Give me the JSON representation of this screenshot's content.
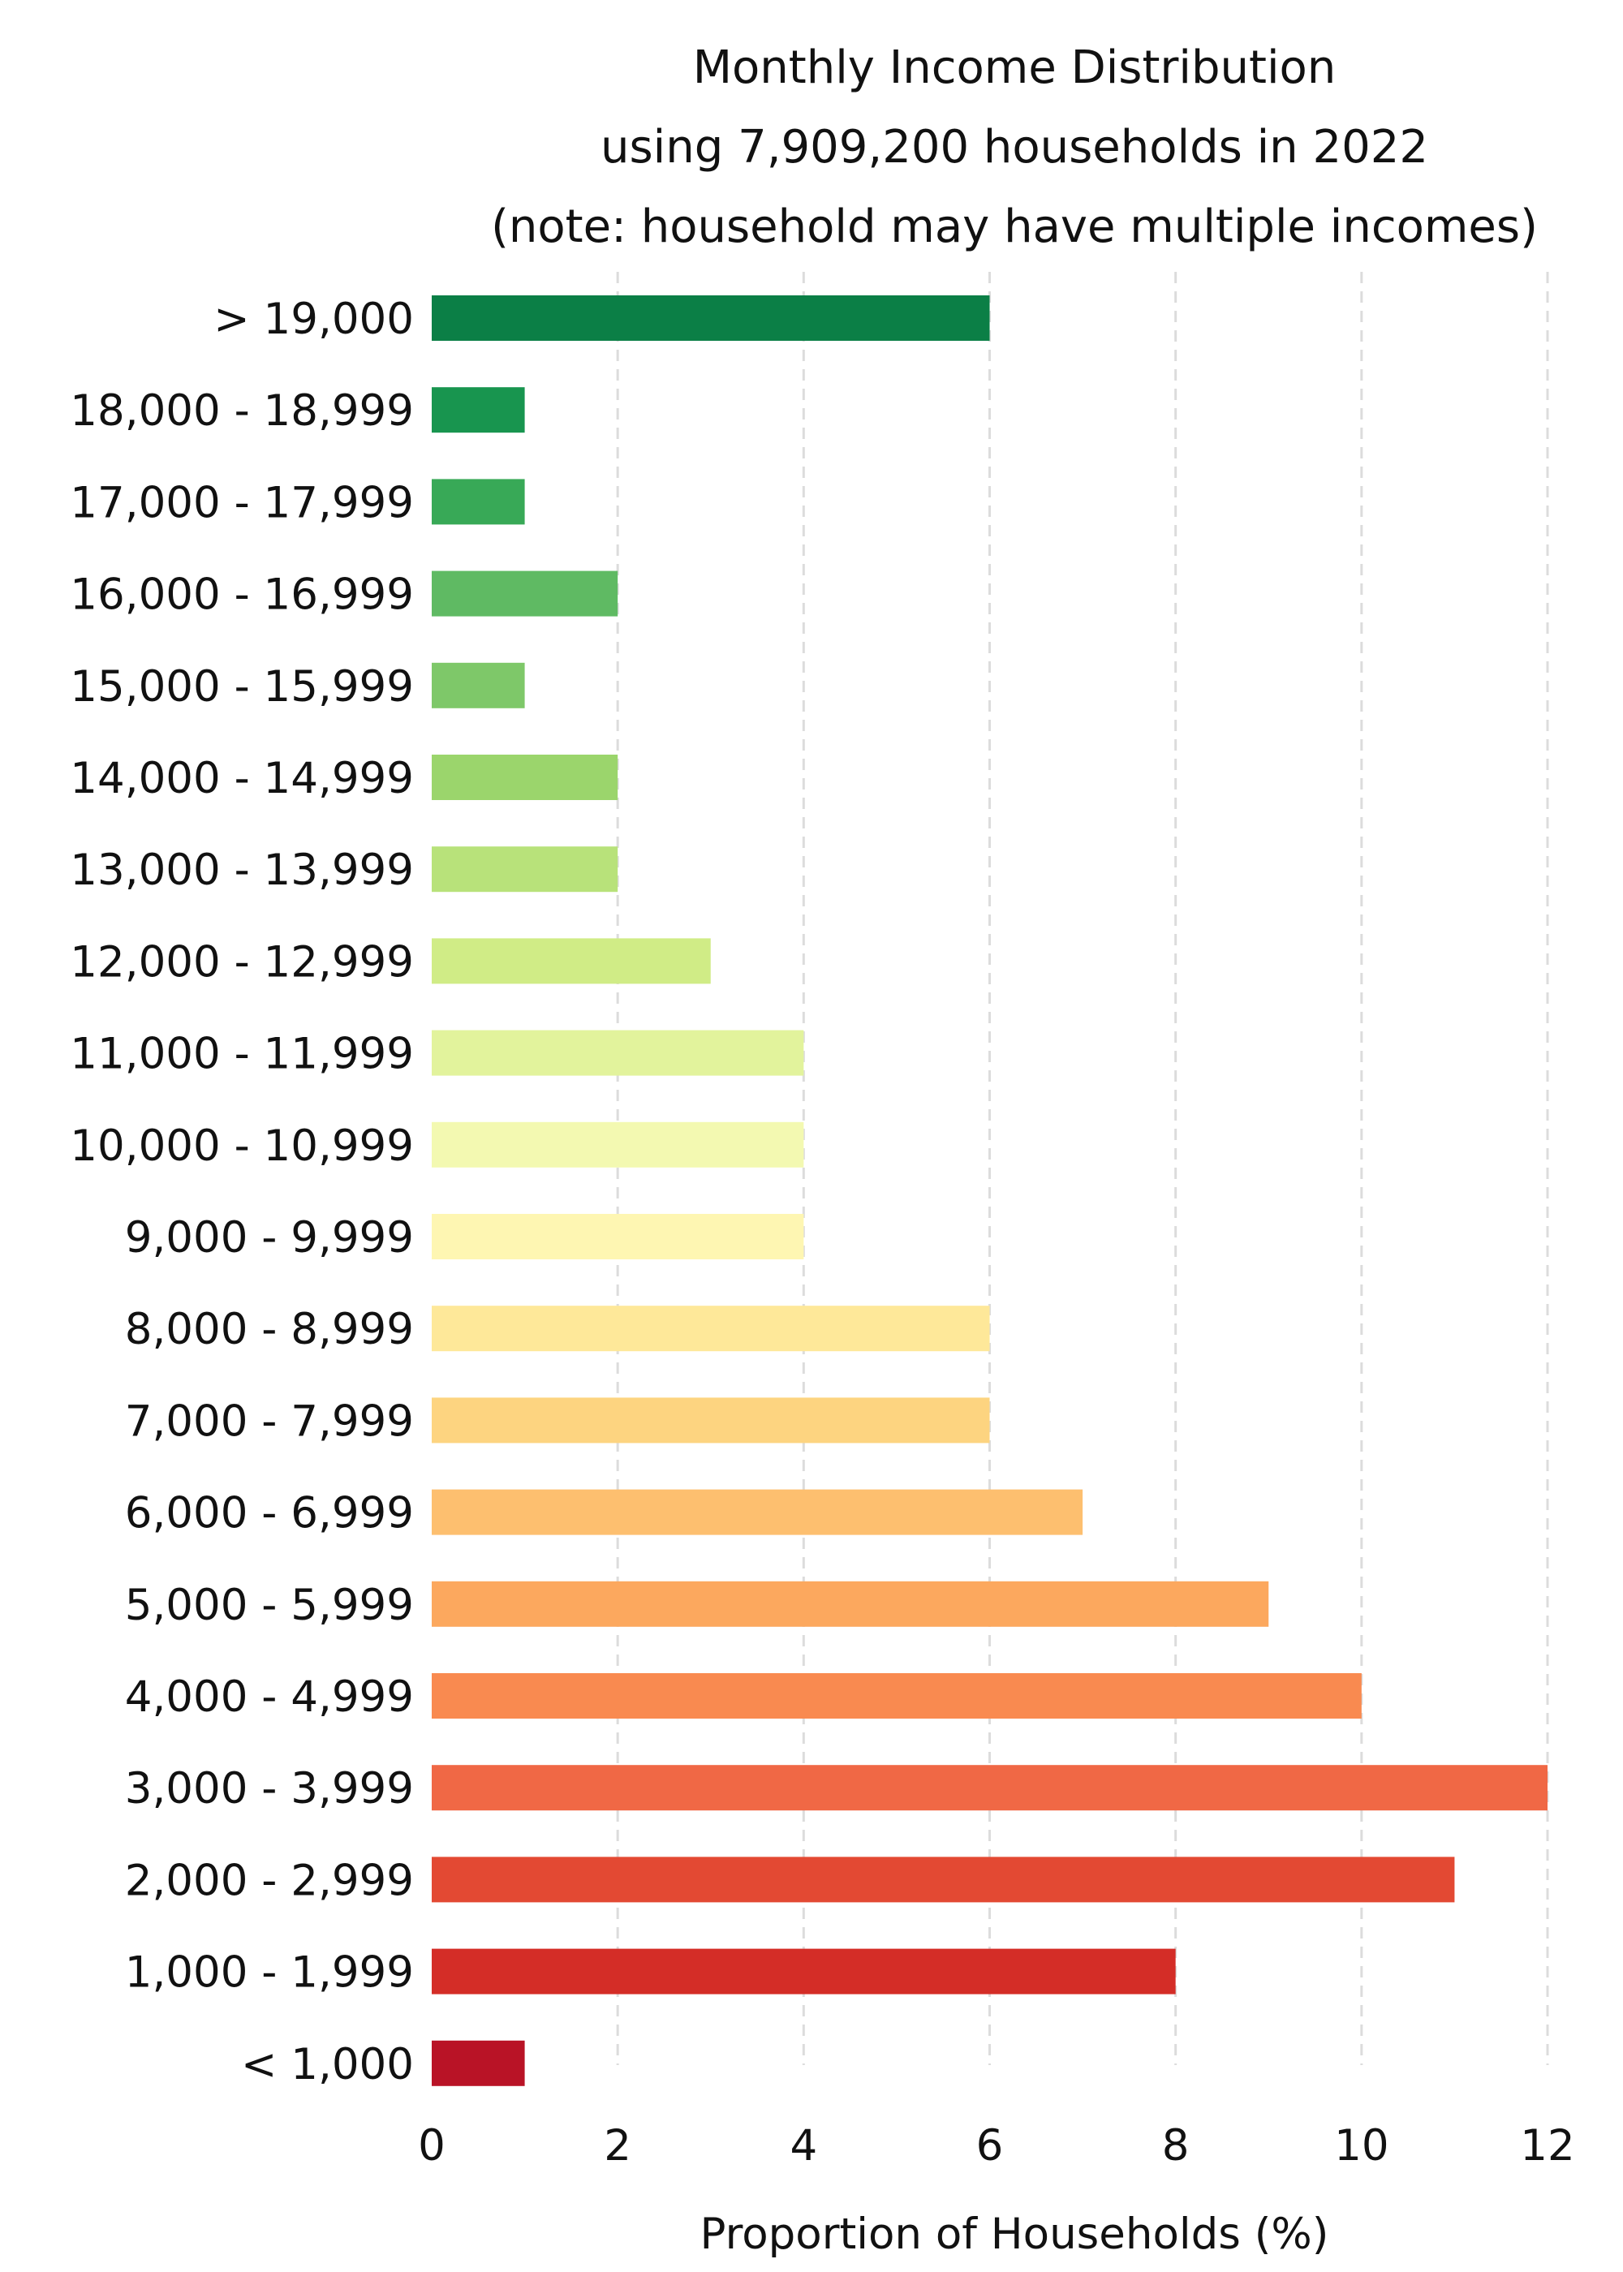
{
  "chart_data": {
    "type": "bar",
    "orientation": "horizontal",
    "title_lines": [
      "Monthly Income Distribution",
      "using 7,909,200 households in 2022",
      "(note: household may have multiple incomes)"
    ],
    "xlabel": "Proportion of Households (%)",
    "ylabel": "",
    "xlim": [
      0,
      12
    ],
    "xticks": [
      0,
      2,
      4,
      6,
      8,
      10,
      12
    ],
    "grid": "vertical dashed",
    "categories": [
      "> 19,000",
      "18,000 - 18,999",
      "17,000 - 17,999",
      "16,000 - 16,999",
      "15,000 - 15,999",
      "14,000 - 14,999",
      "13,000 - 13,999",
      "12,000 - 12,999",
      "11,000 - 11,999",
      "10,000 - 10,999",
      "9,000 - 9,999",
      "8,000 - 8,999",
      "7,000 - 7,999",
      "6,000 - 6,999",
      "5,000 - 5,999",
      "4,000 - 4,999",
      "3,000 - 3,999",
      "2,000 - 2,999",
      "1,000 - 1,999",
      "< 1,000"
    ],
    "values": [
      6,
      1,
      1,
      2,
      1,
      2,
      2,
      3,
      4,
      4,
      4,
      6,
      6,
      7,
      9,
      10,
      12,
      11,
      8,
      1
    ],
    "colors": [
      "#0b7f46",
      "#18954f",
      "#38a957",
      "#5fba63",
      "#7ec869",
      "#9bd56c",
      "#b8e27a",
      "#d0ec86",
      "#e2f39c",
      "#f3f9b1",
      "#fef6b2",
      "#fee899",
      "#fdd480",
      "#fdbf6f",
      "#fca85e",
      "#f98a50",
      "#f06845",
      "#e34933",
      "#d42d27",
      "#b91326"
    ]
  }
}
